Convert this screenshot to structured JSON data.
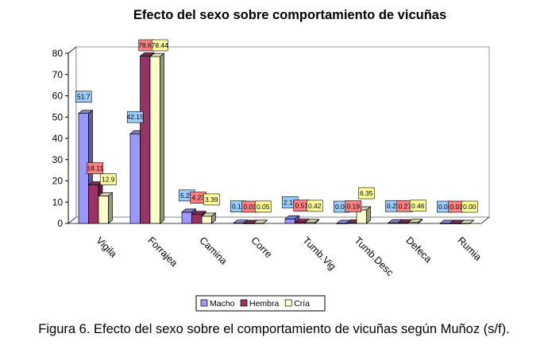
{
  "caption": "Figura 6. Efecto del sexo sobre el comportamiento de vicuñas según Muñoz (s/f).",
  "chart_data": {
    "type": "bar",
    "title": "Efecto del sexo sobre comportamiento de vicuñas",
    "categories": [
      "Vigila",
      "Forrajea",
      "Camina",
      "Corre",
      "Tumb.Vig",
      "Tumb.Desc",
      "Defeca",
      "Rumia"
    ],
    "series": [
      {
        "name": "Macho",
        "color": "#9999ff",
        "label_bg": "#99ccff",
        "values": [
          51.7,
          42.15,
          5.29,
          0.12,
          2.1,
          0.0,
          0.29,
          0.0
        ],
        "labels": [
          "51.7",
          "42.15",
          "5.29",
          "0.12",
          "2.10",
          "0.00",
          "0.29",
          "0.00"
        ]
      },
      {
        "name": "Hembra",
        "color": "#993366",
        "label_bg": "#ff8080",
        "values": [
          18.11,
          78.69,
          4.23,
          0.01,
          0.51,
          0.19,
          0.27,
          0.01
        ],
        "labels": [
          "18.11",
          "78.69",
          "4.23",
          "0.01",
          "0.51",
          "0.19",
          "0.27",
          "0.01"
        ]
      },
      {
        "name": "Cría",
        "color": "#ffffcc",
        "label_bg": "#ffff99",
        "values": [
          12.9,
          78.44,
          3.39,
          0.05,
          0.42,
          6.35,
          0.46,
          0.0
        ],
        "labels": [
          "12.9",
          "78.44",
          "3.39",
          "0.05",
          "0.42",
          "6.35",
          "0.46",
          "0.00"
        ]
      }
    ],
    "y_ticks": [
      0,
      10,
      20,
      30,
      40,
      50,
      60,
      70,
      80
    ],
    "ylim": [
      0,
      80
    ],
    "legend_position": "bottom",
    "grid": false
  }
}
